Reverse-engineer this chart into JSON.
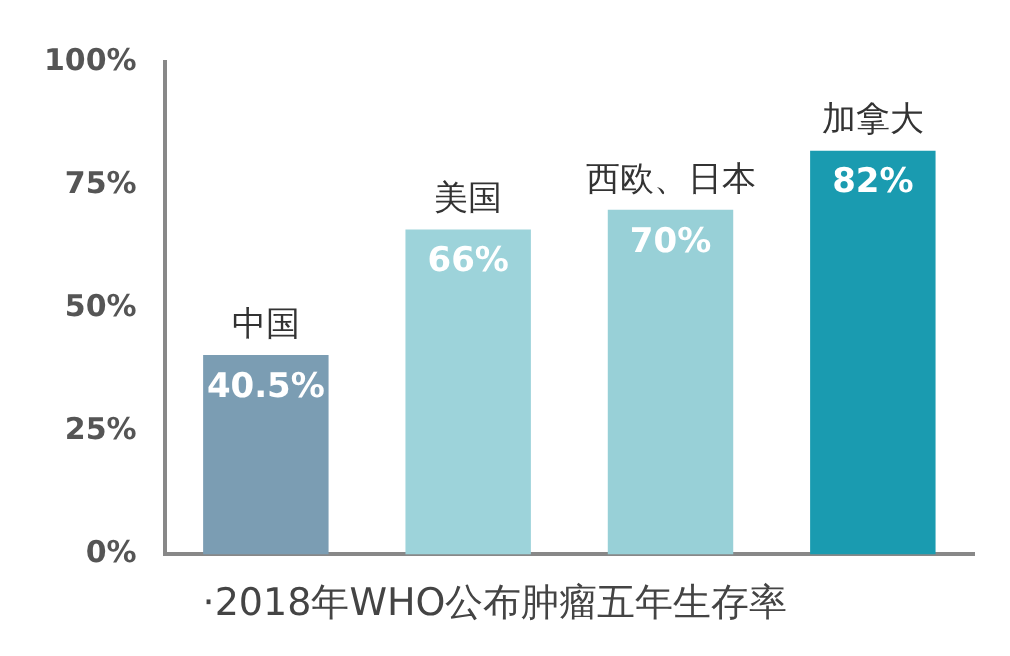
{
  "chart_data": {
    "type": "bar",
    "title": "·2018年WHO公布肿瘤五年生存率",
    "categories": [
      "中国",
      "美国",
      "西欧、日本",
      "加拿大"
    ],
    "values": [
      40.5,
      66,
      70,
      82
    ],
    "value_labels": [
      "40.5%",
      "66%",
      "70%",
      "82%"
    ],
    "colors": [
      "#7b9db3",
      "#9dd3da",
      "#98d0d7",
      "#1a9bb0"
    ],
    "ylim": [
      0,
      100
    ],
    "yticks": [
      {
        "value": 0,
        "label": "0%"
      },
      {
        "value": 25,
        "label": "25%"
      },
      {
        "value": 50,
        "label": "50%"
      },
      {
        "value": 75,
        "label": "75%"
      },
      {
        "value": 100,
        "label": "100%"
      }
    ],
    "grid": false,
    "legend": false
  }
}
